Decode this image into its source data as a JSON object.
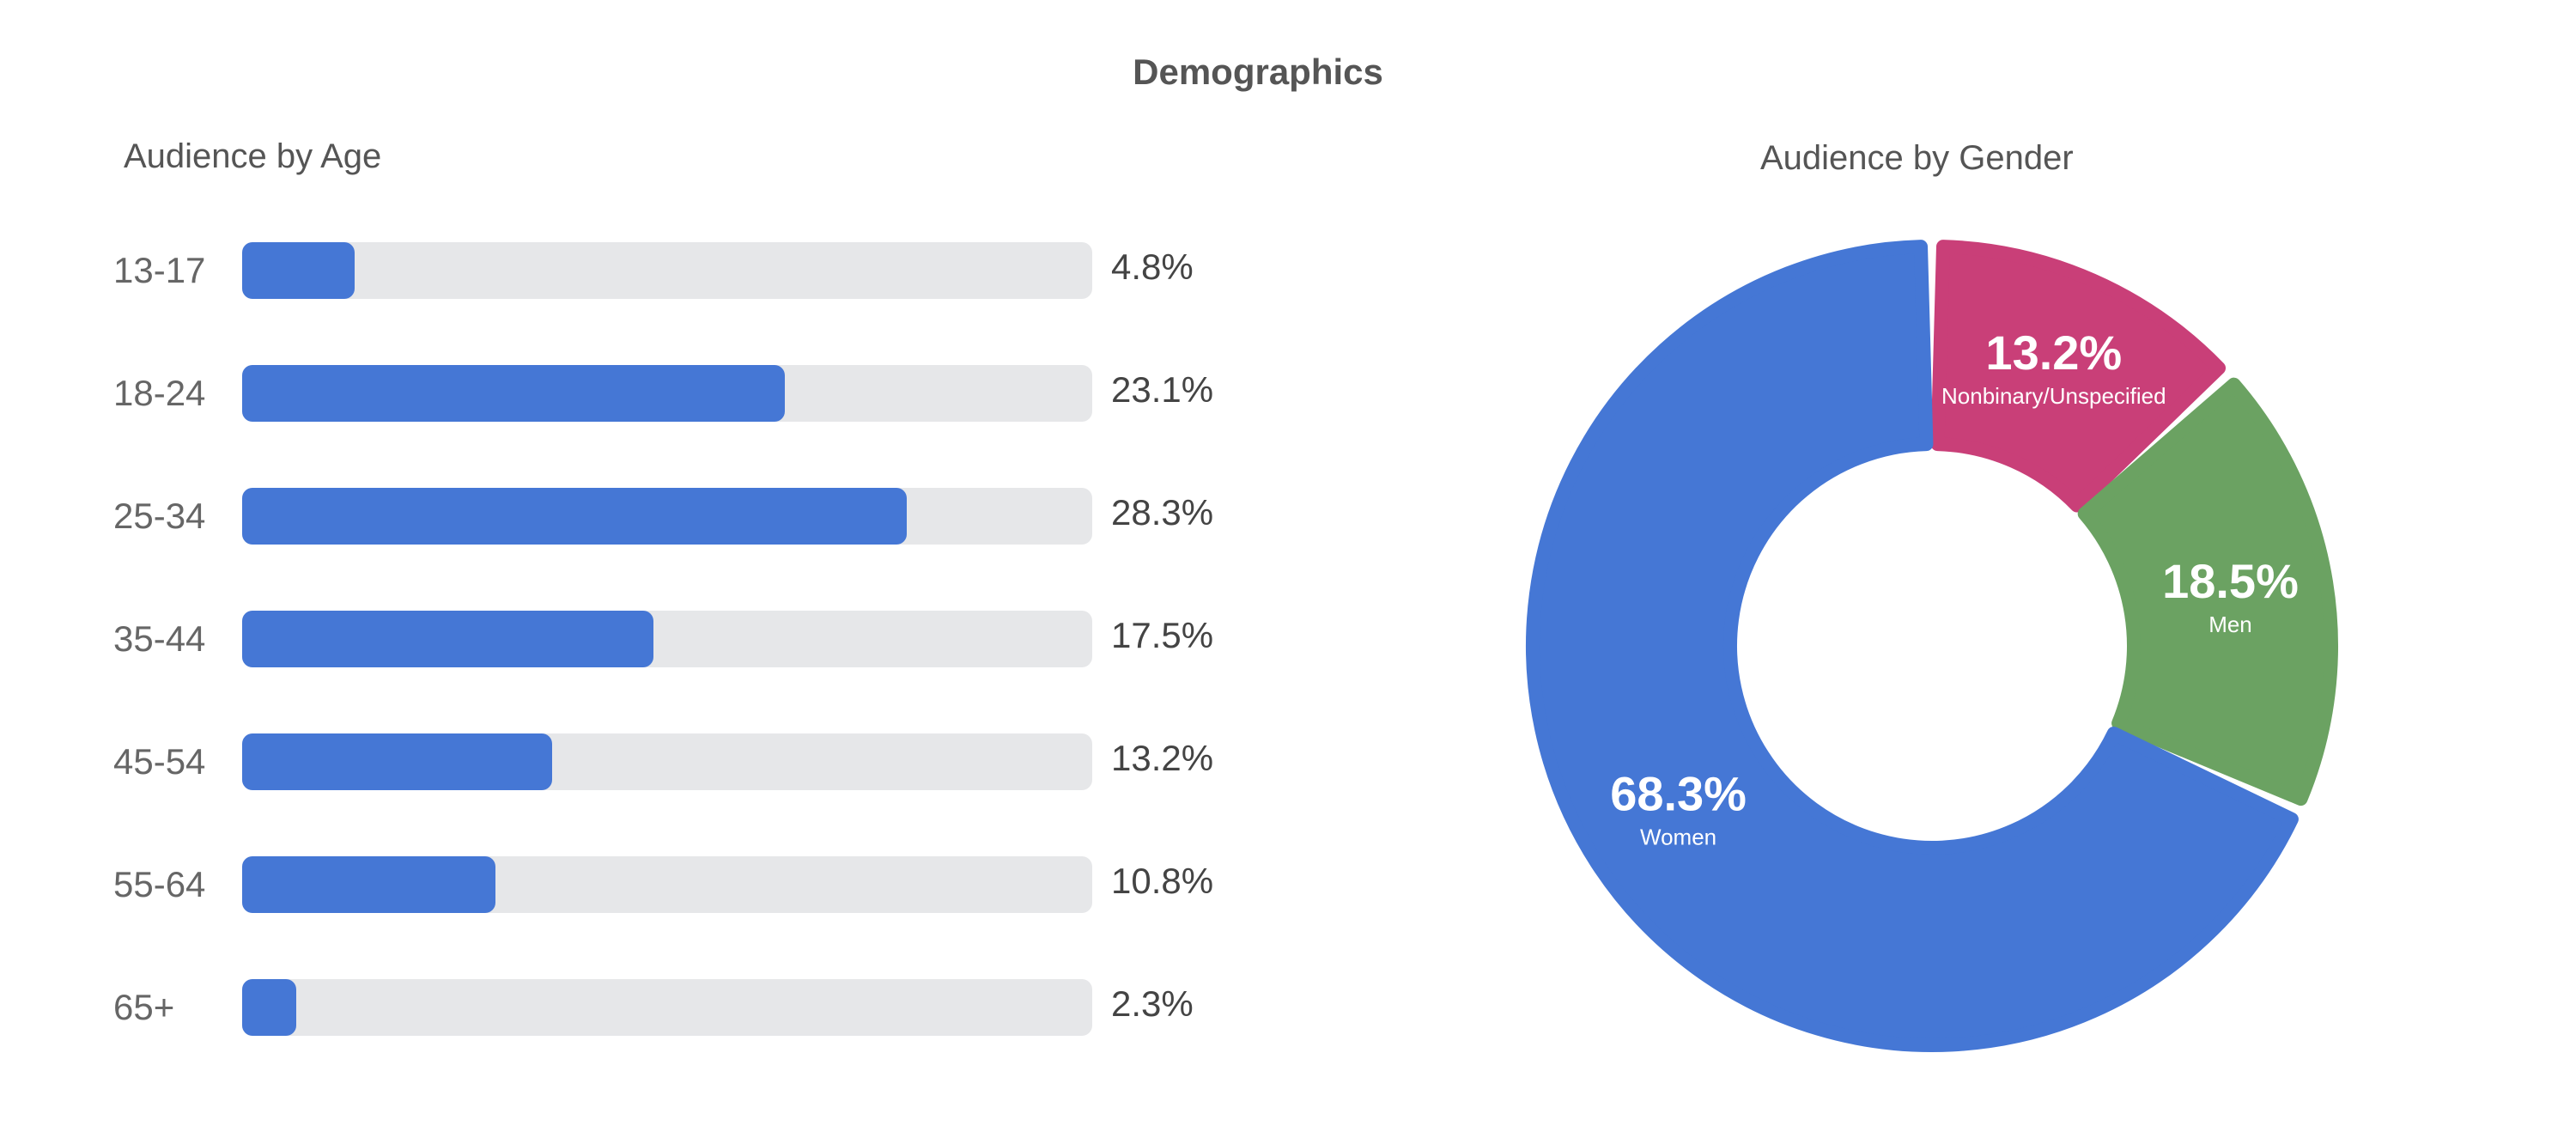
{
  "title": "Demographics",
  "chart_data": [
    {
      "type": "bar",
      "orientation": "horizontal",
      "title": "Audience by Age",
      "categories": [
        "13-17",
        "18-24",
        "25-34",
        "35-44",
        "45-54",
        "55-64",
        "65+"
      ],
      "values": [
        4.8,
        23.1,
        28.3,
        17.5,
        13.2,
        10.8,
        2.3
      ],
      "value_labels": [
        "4.8%",
        "23.1%",
        "28.3%",
        "17.5%",
        "13.2%",
        "10.8%",
        "2.3%"
      ],
      "xlim": [
        0,
        100
      ],
      "unit": "%",
      "bar_color": "#4577d5",
      "track_color": "#e6e7e9",
      "grid": false
    },
    {
      "type": "pie",
      "style": "donut",
      "title": "Audience by Gender",
      "slices": [
        {
          "label": "Nonbinary/Unspecified",
          "value": 13.2,
          "value_label": "13.2%",
          "color": "#c93f78"
        },
        {
          "label": "Men",
          "value": 18.5,
          "value_label": "18.5%",
          "color": "#6ba262"
        },
        {
          "label": "Women",
          "value": 68.3,
          "value_label": "68.3%",
          "color": "#4577d5"
        }
      ],
      "start_angle_deg": 0,
      "direction": "clockwise",
      "legend": "none"
    }
  ]
}
